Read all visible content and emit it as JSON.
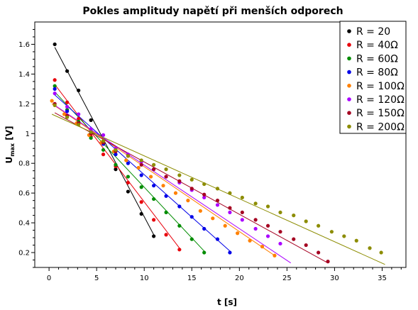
{
  "chart_data": {
    "type": "scatter",
    "title": "Pokles amplitudy napětí při menších odporech",
    "xlabel": "t [s]",
    "ylabel_main": "U",
    "ylabel_sub": "max",
    "ylabel_unit": " [V]",
    "xlim": [
      -1.5,
      37.5
    ],
    "ylim": [
      0.1,
      1.75
    ],
    "x_ticks": [
      0,
      5,
      10,
      15,
      20,
      25,
      30,
      35
    ],
    "x_tick_labels": [
      "0",
      "5",
      "10",
      "15",
      "20",
      "25",
      "30",
      "35"
    ],
    "y_ticks": [
      0.2,
      0.4,
      0.6,
      0.8,
      1.0,
      1.2,
      1.4,
      1.6
    ],
    "y_tick_labels": [
      "0.2",
      "0.4",
      "0.6",
      "0.8",
      "1",
      "1.2",
      "1.4",
      "1.6"
    ],
    "legend_position": "top-right",
    "series": [
      {
        "name": "R = 20",
        "color": "#000000",
        "x": [
          0.6,
          1.9,
          3.1,
          4.4,
          5.7,
          7.0,
          8.3,
          9.7,
          11.0
        ],
        "y": [
          1.6,
          1.42,
          1.29,
          1.09,
          0.93,
          0.76,
          0.61,
          0.46,
          0.31
        ],
        "fit": [
          [
            0.6,
            1.58
          ],
          [
            11.0,
            0.32
          ]
        ]
      },
      {
        "name": "R = 40Ω",
        "color": "#e8000b",
        "x": [
          0.6,
          1.9,
          3.1,
          4.4,
          5.7,
          7.0,
          8.3,
          9.7,
          11.0,
          12.3,
          13.7
        ],
        "y": [
          1.36,
          1.21,
          1.1,
          0.98,
          0.86,
          0.78,
          0.67,
          0.54,
          0.42,
          0.32,
          0.22
        ],
        "fit": [
          [
            0.6,
            1.33
          ],
          [
            13.7,
            0.23
          ]
        ]
      },
      {
        "name": "R = 60Ω",
        "color": "#008c00",
        "x": [
          0.6,
          1.9,
          3.1,
          4.4,
          5.7,
          7.0,
          8.3,
          9.7,
          11.0,
          12.3,
          13.7,
          15.0,
          16.3
        ],
        "y": [
          1.32,
          1.16,
          1.08,
          0.97,
          0.89,
          0.79,
          0.71,
          0.64,
          0.56,
          0.47,
          0.38,
          0.29,
          0.2
        ],
        "fit": [
          [
            0.6,
            1.28
          ],
          [
            16.3,
            0.21
          ]
        ]
      },
      {
        "name": "R = 80Ω",
        "color": "#0000e8",
        "x": [
          0.6,
          1.9,
          3.1,
          4.4,
          5.7,
          7.0,
          8.3,
          9.7,
          11.0,
          12.3,
          13.7,
          15.0,
          16.3,
          17.7,
          19.0
        ],
        "y": [
          1.3,
          1.15,
          1.07,
          1.01,
          0.93,
          0.86,
          0.8,
          0.72,
          0.65,
          0.58,
          0.51,
          0.44,
          0.36,
          0.29,
          0.2
        ],
        "fit": [
          [
            0.6,
            1.26
          ],
          [
            19.0,
            0.21
          ]
        ]
      },
      {
        "name": "R = 100Ω",
        "color": "#ff8000",
        "x": [
          0.3,
          1.6,
          2.9,
          4.2,
          5.5,
          6.8,
          8.1,
          9.4,
          10.7,
          12.0,
          13.3,
          14.6,
          15.9,
          17.2,
          18.5,
          19.8,
          21.1,
          22.4,
          23.7
        ],
        "y": [
          1.22,
          1.13,
          1.07,
          0.99,
          0.94,
          0.88,
          0.82,
          0.77,
          0.71,
          0.65,
          0.6,
          0.55,
          0.48,
          0.43,
          0.38,
          0.33,
          0.28,
          0.24,
          0.18
        ],
        "fit": [
          [
            0.3,
            1.2
          ],
          [
            23.7,
            0.18
          ]
        ]
      },
      {
        "name": "R = 120Ω",
        "color": "#aa00ff",
        "x": [
          0.6,
          1.9,
          3.1,
          4.4,
          5.7,
          7.0,
          8.3,
          9.7,
          11.0,
          12.3,
          13.7,
          15.0,
          16.3,
          17.7,
          19.0,
          20.3,
          21.7,
          23.0,
          24.3
        ],
        "y": [
          1.27,
          1.18,
          1.13,
          1.03,
          0.99,
          0.9,
          0.86,
          0.81,
          0.76,
          0.71,
          0.67,
          0.62,
          0.57,
          0.52,
          0.47,
          0.42,
          0.36,
          0.31,
          0.26
        ],
        "fit": [
          [
            0.6,
            1.19
          ],
          [
            25.4,
            0.13
          ]
        ]
      },
      {
        "name": "R = 150Ω",
        "color": "#a50021",
        "x": [
          0.6,
          1.9,
          3.1,
          4.4,
          5.7,
          7.0,
          8.3,
          9.7,
          11.0,
          12.3,
          13.7,
          15.0,
          16.3,
          17.7,
          19.0,
          20.3,
          21.7,
          23.0,
          24.3,
          25.7,
          27.0,
          28.3,
          29.3
        ],
        "y": [
          1.2,
          1.12,
          1.07,
          1.0,
          0.94,
          0.88,
          0.85,
          0.79,
          0.76,
          0.71,
          0.68,
          0.63,
          0.59,
          0.55,
          0.5,
          0.47,
          0.42,
          0.38,
          0.34,
          0.29,
          0.25,
          0.2,
          0.14
        ],
        "fit": [
          [
            0.6,
            1.14
          ],
          [
            29.3,
            0.13
          ]
        ]
      },
      {
        "name": "R = 200Ω",
        "color": "#8c8c00",
        "x": [
          0.6,
          1.9,
          3.1,
          4.4,
          5.7,
          7.0,
          8.3,
          9.7,
          11.0,
          12.3,
          13.7,
          15.0,
          16.3,
          17.7,
          19.0,
          20.3,
          21.7,
          23.0,
          24.3,
          25.7,
          27.0,
          28.3,
          29.7,
          31.0,
          32.3,
          33.7,
          34.9
        ],
        "y": [
          1.19,
          1.11,
          1.06,
          1.01,
          0.95,
          0.89,
          0.85,
          0.82,
          0.79,
          0.76,
          0.72,
          0.69,
          0.66,
          0.63,
          0.6,
          0.57,
          0.53,
          0.51,
          0.47,
          0.45,
          0.41,
          0.38,
          0.34,
          0.31,
          0.28,
          0.23,
          0.2
        ],
        "fit": [
          [
            0.3,
            1.13
          ],
          [
            35.3,
            0.12
          ]
        ]
      }
    ]
  }
}
